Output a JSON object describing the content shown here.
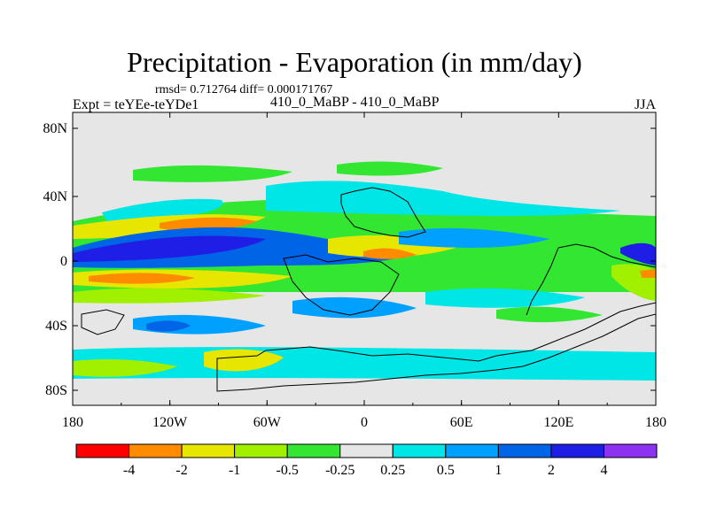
{
  "title": "Precipitation - Evaporation (in mm/day)",
  "stats": "rmsd= 0.712764  diff= 0.000171767",
  "left_label": "Expt = teYEe-teYDe1",
  "center_label": "410_0_MaBP - 410_0_MaBP",
  "right_label": "JJA",
  "lat_ticks": [
    "80N",
    "40N",
    "0",
    "40S",
    "80S"
  ],
  "lon_ticks": [
    "180",
    "120W",
    "60W",
    "0",
    "60E",
    "120E",
    "180"
  ],
  "colorbar": {
    "labels": [
      "-4",
      "-2",
      "-1",
      "-0.5",
      "-0.25",
      "0.25",
      "0.5",
      "1",
      "2",
      "4"
    ],
    "colors": [
      "#ff0000",
      "#ff8c00",
      "#e6e600",
      "#a0f000",
      "#32e632",
      "#e6e6e6",
      "#00e6e6",
      "#00a0ff",
      "#0064e6",
      "#1e1ee6",
      "#8c32f0"
    ]
  },
  "field_colors": {
    "missing": "#e6e6e6",
    "neg_small": "#32e632",
    "neg_mid": "#a0f000",
    "neg_large": "#e6e600",
    "neg_xlarge": "#ff8c00",
    "pos_small": "#00e6e6",
    "pos_mid": "#00a0ff",
    "pos_large": "#0064e6",
    "pos_xlarge": "#1e1ee6"
  }
}
